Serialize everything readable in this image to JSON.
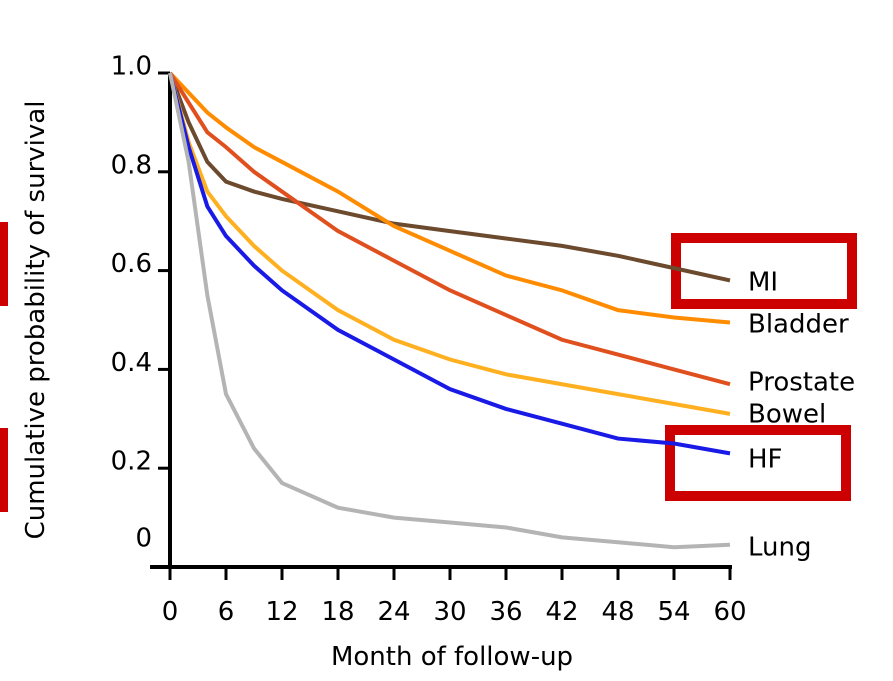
{
  "chart_data": {
    "type": "line",
    "x_label": "Month of follow-up",
    "y_label": "Cumulative probability of survival",
    "x": [
      0,
      2,
      4,
      6,
      9,
      12,
      18,
      24,
      30,
      36,
      42,
      48,
      54,
      60
    ],
    "series": [
      {
        "name": "MI",
        "color": "#6b4a2e",
        "values": [
          1,
          0.9,
          0.82,
          0.78,
          0.76,
          0.745,
          0.72,
          0.695,
          0.68,
          0.665,
          0.65,
          0.63,
          0.605,
          0.58
        ]
      },
      {
        "name": "Bladder",
        "color": "#ff8c00",
        "values": [
          1,
          0.96,
          0.92,
          0.89,
          0.85,
          0.82,
          0.76,
          0.69,
          0.64,
          0.59,
          0.56,
          0.52,
          0.505,
          0.495
        ]
      },
      {
        "name": "Prostate",
        "color": "#e0501e",
        "values": [
          1,
          0.94,
          0.88,
          0.85,
          0.8,
          0.76,
          0.68,
          0.62,
          0.56,
          0.51,
          0.46,
          0.43,
          0.4,
          0.37
        ]
      },
      {
        "name": "Bowel",
        "color": "#ffb020",
        "values": [
          1,
          0.86,
          0.76,
          0.71,
          0.65,
          0.6,
          0.52,
          0.46,
          0.42,
          0.39,
          0.37,
          0.35,
          0.33,
          0.31
        ]
      },
      {
        "name": "HF",
        "color": "#1a1ae6",
        "values": [
          1,
          0.85,
          0.73,
          0.67,
          0.61,
          0.56,
          0.48,
          0.42,
          0.36,
          0.32,
          0.29,
          0.26,
          0.25,
          0.23
        ]
      },
      {
        "name": "Lung",
        "color": "#b4b4b4",
        "values": [
          1,
          0.82,
          0.55,
          0.35,
          0.24,
          0.17,
          0.12,
          0.1,
          0.09,
          0.08,
          0.06,
          0.05,
          0.04,
          0.045
        ]
      }
    ],
    "xlim": [
      0,
      60
    ],
    "xticks": [
      0,
      6,
      12,
      18,
      24,
      30,
      36,
      42,
      48,
      54,
      60
    ],
    "ylim": [
      0,
      1
    ],
    "yticks": [
      0,
      0.2,
      0.4,
      0.6,
      {
        "value": 1,
        "label": "1.0"
      },
      0.8
    ]
  }
}
